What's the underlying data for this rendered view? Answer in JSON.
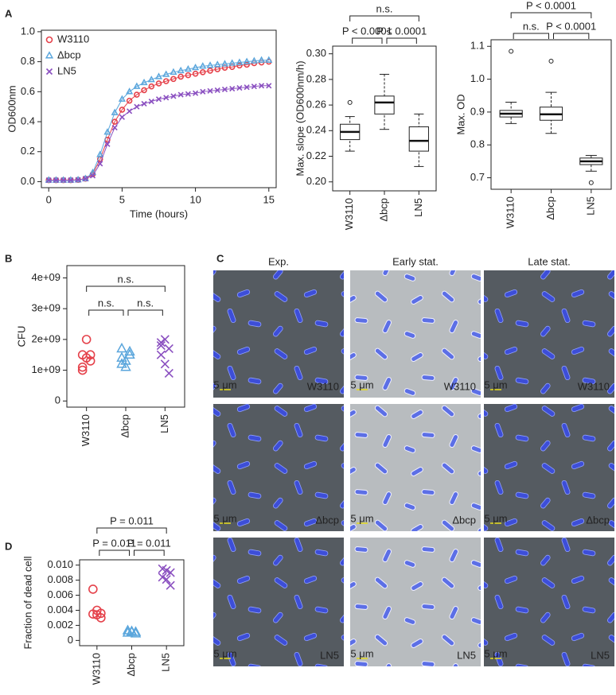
{
  "panel_labels": [
    "A",
    "B",
    "C",
    "D"
  ],
  "chart_data": [
    {
      "type": "line",
      "ylabel": "OD600nm",
      "xlabel": "Time (hours)",
      "legend": "upper left",
      "x": [
        0,
        0.5,
        1,
        1.5,
        2,
        2.5,
        3,
        3.5,
        4,
        4.5,
        5,
        5.5,
        6,
        6.5,
        7,
        7.5,
        8,
        8.5,
        9,
        9.5,
        10,
        10.5,
        11,
        11.5,
        12,
        12.5,
        13,
        13.5,
        14,
        14.5,
        15
      ],
      "series": [
        {
          "name": "W3110",
          "color": "#e5424b",
          "marker": "circle",
          "values": [
            0.01,
            0.01,
            0.01,
            0.01,
            0.012,
            0.02,
            0.05,
            0.15,
            0.28,
            0.4,
            0.48,
            0.54,
            0.58,
            0.61,
            0.635,
            0.655,
            0.67,
            0.685,
            0.7,
            0.71,
            0.72,
            0.73,
            0.74,
            0.75,
            0.76,
            0.765,
            0.775,
            0.78,
            0.79,
            0.795,
            0.8
          ]
        },
        {
          "name": "Δbcp",
          "color": "#5ba6dc",
          "marker": "triangle",
          "values": [
            0.01,
            0.01,
            0.01,
            0.01,
            0.012,
            0.02,
            0.06,
            0.18,
            0.33,
            0.46,
            0.55,
            0.6,
            0.635,
            0.66,
            0.68,
            0.7,
            0.715,
            0.73,
            0.74,
            0.75,
            0.76,
            0.77,
            0.775,
            0.78,
            0.785,
            0.79,
            0.795,
            0.8,
            0.805,
            0.81,
            0.81
          ]
        },
        {
          "name": "LN5",
          "color": "#8a4fc0",
          "marker": "x",
          "values": [
            0.01,
            0.01,
            0.01,
            0.01,
            0.012,
            0.02,
            0.04,
            0.12,
            0.25,
            0.36,
            0.43,
            0.47,
            0.5,
            0.52,
            0.535,
            0.55,
            0.56,
            0.57,
            0.58,
            0.585,
            0.59,
            0.6,
            0.605,
            0.61,
            0.615,
            0.62,
            0.625,
            0.63,
            0.635,
            0.64,
            0.64
          ]
        }
      ],
      "xlim": [
        -0.5,
        15.5
      ],
      "xticks": [
        0,
        5,
        10,
        15
      ],
      "ylim": [
        -0.04,
        1.01
      ],
      "yticks": [
        {
          "value": 0,
          "label": "0.0"
        },
        0.2,
        0.4,
        0.6,
        0.8,
        {
          "value": 1,
          "label": "1.0"
        }
      ]
    },
    {
      "type": "box",
      "ylabel": "Max. slope (OD600nm/h)",
      "categories": [
        "W3110",
        "Δbcp",
        "LN5"
      ],
      "boxes": [
        {
          "whislo": 0.224,
          "q1": 0.233,
          "med": 0.239,
          "q3": 0.245,
          "whishi": 0.251,
          "fliers": [
            0.262
          ]
        },
        {
          "whislo": 0.241,
          "q1": 0.253,
          "med": 0.262,
          "q3": 0.267,
          "whishi": 0.284,
          "fliers": []
        },
        {
          "whislo": 0.212,
          "q1": 0.224,
          "med": 0.232,
          "q3": 0.243,
          "whishi": 0.253,
          "fliers": []
        }
      ],
      "ylim": [
        0.193,
        0.306
      ],
      "yticks": [
        {
          "value": 0.2,
          "label": "0.20"
        },
        0.22,
        0.24,
        0.26,
        0.28,
        {
          "value": 0.3,
          "label": "0.30"
        }
      ],
      "brackets": [
        {
          "pair": [
            0,
            2
          ],
          "label": "n.s."
        },
        {
          "pair": [
            0,
            1
          ],
          "label": "P < 0.0001"
        },
        {
          "pair": [
            1,
            2
          ],
          "label": "P < 0.0001"
        }
      ]
    },
    {
      "type": "box",
      "ylabel": "Max. OD",
      "categories": [
        "W3110",
        "Δbcp",
        "LN5"
      ],
      "boxes": [
        {
          "whislo": 0.865,
          "q1": 0.885,
          "med": 0.895,
          "q3": 0.905,
          "whishi": 0.93,
          "fliers": [
            1.085
          ]
        },
        {
          "whislo": 0.835,
          "q1": 0.875,
          "med": 0.893,
          "q3": 0.915,
          "whishi": 0.96,
          "fliers": [
            1.055
          ]
        },
        {
          "whislo": 0.72,
          "q1": 0.74,
          "med": 0.75,
          "q3": 0.76,
          "whishi": 0.768,
          "fliers": [
            0.685
          ]
        }
      ],
      "ylim": [
        0.665,
        1.12
      ],
      "yticks": [
        0.7,
        0.8,
        0.9,
        {
          "value": 1,
          "label": "1.0"
        },
        1.1
      ],
      "brackets": [
        {
          "pair": [
            0,
            2
          ],
          "label": "P < 0.0001"
        },
        {
          "pair": [
            0,
            1
          ],
          "label": "n.s."
        },
        {
          "pair": [
            1,
            2
          ],
          "label": "P < 0.0001"
        }
      ]
    },
    {
      "type": "strip",
      "ylabel": "CFU",
      "categories": [
        "W3110",
        "Δbcp",
        "LN5"
      ],
      "series": [
        {
          "color": "#e5424b",
          "marker": "circle",
          "values": [
            1500000000,
            1400000000,
            1300000000,
            1000000000,
            2000000000,
            1500000000,
            1100000000
          ]
        },
        {
          "color": "#5ba6dc",
          "marker": "triangle",
          "values": [
            1200000000,
            1300000000,
            1500000000,
            1700000000,
            1100000000,
            1600000000,
            1400000000
          ]
        },
        {
          "color": "#8a4fc0",
          "marker": "x",
          "values": [
            1900000000,
            2000000000,
            1700000000,
            1500000000,
            1200000000,
            900000000,
            1800000000
          ]
        }
      ],
      "ylim": [
        -200000000,
        4400000000
      ],
      "yticks": [
        0,
        {
          "value": 1000000000,
          "label": "1e+09"
        },
        {
          "value": 2000000000,
          "label": "2e+09"
        },
        {
          "value": 3000000000,
          "label": "3e+09"
        },
        {
          "value": 4000000000,
          "label": "4e+09"
        }
      ],
      "brackets": [
        {
          "pair": [
            0,
            2
          ],
          "label": "n.s."
        },
        {
          "pair": [
            0,
            1
          ],
          "label": "n.s."
        },
        {
          "pair": [
            1,
            2
          ],
          "label": "n.s."
        }
      ]
    },
    {
      "type": "strip",
      "ylabel": "Fraction of dead cell",
      "categories": [
        "W3110",
        "Δbcp",
        "LN5"
      ],
      "series": [
        {
          "color": "#e5424b",
          "marker": "circle",
          "values": [
            0.0068,
            0.004,
            0.0036,
            0.0035,
            0.0034,
            0.003
          ]
        },
        {
          "color": "#5ba6dc",
          "marker": "triangle",
          "values": [
            0.0013,
            0.0012,
            0.0011,
            0.001,
            0.0011,
            0.0009
          ]
        },
        {
          "color": "#8a4fc0",
          "marker": "x",
          "values": [
            0.0095,
            0.0093,
            0.009,
            0.0084,
            0.0081,
            0.0073
          ]
        }
      ],
      "ylim": [
        -0.0007,
        0.0107
      ],
      "yticks": [
        0,
        0.002,
        0.004,
        0.006,
        0.008,
        {
          "value": 0.01,
          "label": "0.010"
        }
      ],
      "brackets": [
        {
          "pair": [
            0,
            2
          ],
          "label": "P = 0.011"
        },
        {
          "pair": [
            0,
            1
          ],
          "label": "P = 0.011"
        },
        {
          "pair": [
            1,
            2
          ],
          "label": "P = 0.011"
        }
      ]
    }
  ],
  "micrographs": {
    "columns": [
      "Exp.",
      "Early stat.",
      "Late stat."
    ],
    "rows": [
      "W3110",
      "Δbcp",
      "LN5"
    ],
    "scale_bar": "5 μm"
  }
}
